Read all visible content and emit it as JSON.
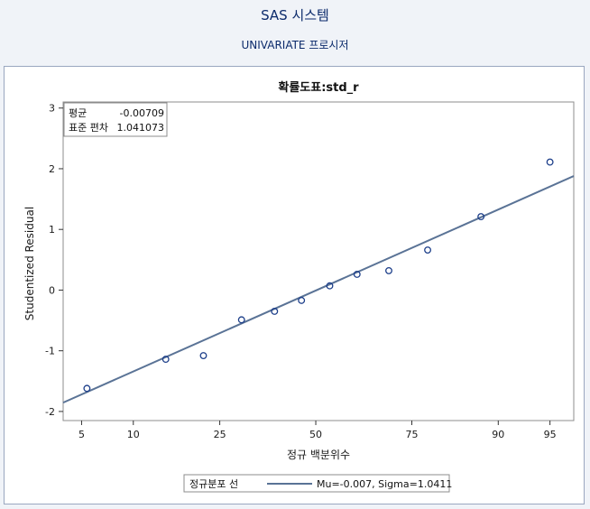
{
  "page": {
    "system_title": "SAS 시스템",
    "procedure_title": "UNIVARIATE 프로시저"
  },
  "chart_data": {
    "type": "scatter",
    "title": "확률도표:std_r",
    "xlabel": "정규 백분위수",
    "ylabel": "Studentized Residual",
    "x_ticks": [
      5,
      10,
      25,
      50,
      75,
      90,
      95
    ],
    "y_ticks": [
      -2,
      -1,
      0,
      1,
      2,
      3
    ],
    "ylim": [
      -2.15,
      3.1
    ],
    "x_scale": "normal-probability",
    "xlim": [
      3.8,
      96.5
    ],
    "points": [
      {
        "x": 5.4,
        "y": -1.62
      },
      {
        "x": 14.6,
        "y": -1.14
      },
      {
        "x": 21.5,
        "y": -1.08
      },
      {
        "x": 30.1,
        "y": -0.49
      },
      {
        "x": 38.6,
        "y": -0.35
      },
      {
        "x": 46.0,
        "y": -0.17
      },
      {
        "x": 53.9,
        "y": 0.07
      },
      {
        "x": 61.4,
        "y": 0.26
      },
      {
        "x": 69.6,
        "y": 0.32
      },
      {
        "x": 78.4,
        "y": 0.66
      },
      {
        "x": 87.7,
        "y": 1.21
      },
      {
        "x": 95.0,
        "y": 2.11
      }
    ],
    "fit_line": {
      "mu": -0.00709,
      "sigma": 1.041073
    },
    "inset": {
      "mean_label": "평균",
      "mean_value": "-0.00709",
      "std_label": "표준 편차",
      "std_value": "1.041073"
    },
    "legend": {
      "title": "정규분포 선",
      "entry": "Mu=-0.007, Sigma=1.0411"
    },
    "colors": {
      "line": "#5a7396",
      "marker": "#1d3f8a",
      "title": "#0b2a6b"
    }
  }
}
